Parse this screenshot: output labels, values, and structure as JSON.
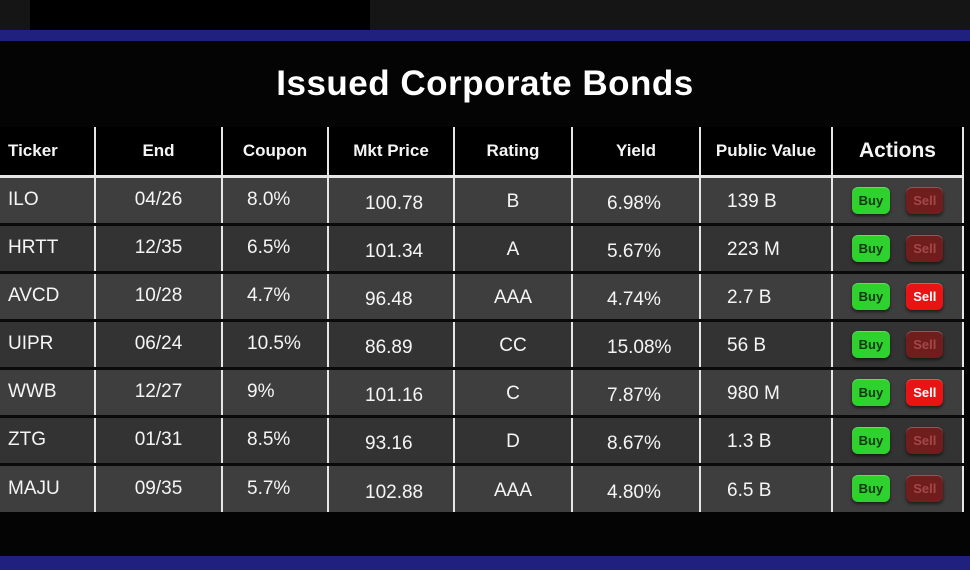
{
  "title": "Issued Corporate Bonds",
  "table": {
    "headers": [
      "Ticker",
      "End",
      "Coupon",
      "Mkt Price",
      "Rating",
      "Yield",
      "Public Value",
      "Actions"
    ],
    "rows": [
      {
        "ticker": "ILO",
        "end": "04/26",
        "coupon": "8.0%",
        "mkt_price": "100.78",
        "rating": "B",
        "yield": "6.98%",
        "public_value": "139 B",
        "buy_label": "Buy",
        "sell_label": "Sell",
        "sell_active": false
      },
      {
        "ticker": "HRTT",
        "end": "12/35",
        "coupon": "6.5%",
        "mkt_price": "101.34",
        "rating": "A",
        "yield": "5.67%",
        "public_value": "223 M",
        "buy_label": "Buy",
        "sell_label": "Sell",
        "sell_active": false
      },
      {
        "ticker": "AVCD",
        "end": "10/28",
        "coupon": "4.7%",
        "mkt_price": "96.48",
        "rating": "AAA",
        "yield": "4.74%",
        "public_value": "2.7 B",
        "buy_label": "Buy",
        "sell_label": "Sell",
        "sell_active": true
      },
      {
        "ticker": "UIPR",
        "end": "06/24",
        "coupon": "10.5%",
        "mkt_price": "86.89",
        "rating": "CC",
        "yield": "15.08%",
        "public_value": "56 B",
        "buy_label": "Buy",
        "sell_label": "Sell",
        "sell_active": false
      },
      {
        "ticker": "WWB",
        "end": "12/27",
        "coupon": "9%",
        "mkt_price": "101.16",
        "rating": "C",
        "yield": "7.87%",
        "public_value": "980 M",
        "buy_label": "Buy",
        "sell_label": "Sell",
        "sell_active": true
      },
      {
        "ticker": "ZTG",
        "end": "01/31",
        "coupon": "8.5%",
        "mkt_price": "93.16",
        "rating": "D",
        "yield": "8.67%",
        "public_value": "1.3 B",
        "buy_label": "Buy",
        "sell_label": "Sell",
        "sell_active": false
      },
      {
        "ticker": "MAJU",
        "end": "09/35",
        "coupon": "5.7%",
        "mkt_price": "102.88",
        "rating": "AAA",
        "yield": "4.80%",
        "public_value": "6.5 B",
        "buy_label": "Buy",
        "sell_label": "Sell",
        "sell_active": false
      }
    ]
  },
  "colors": {
    "stripe": "#20207e",
    "header_bg": "#000000",
    "grid_line": "#e6e6e6",
    "row_odd": "#3e3e3e",
    "row_even": "#333333",
    "buy_bg": "#2fd12f",
    "buy_text": "#073807",
    "sell_muted_bg": "#701d1d",
    "sell_muted_text": "#a34848",
    "sell_active_bg": "#e81414",
    "sell_active_text": "#ffffff"
  }
}
